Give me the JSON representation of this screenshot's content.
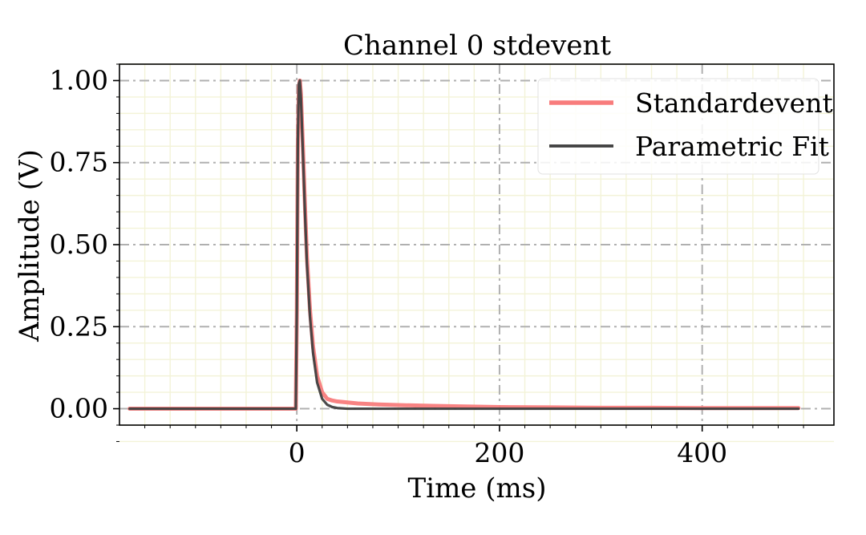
{
  "chart_data": {
    "type": "line",
    "title": "Channel 0 stdevent",
    "xlabel": "Time (ms)",
    "ylabel": "Amplitude (V)",
    "xlim": [
      -175,
      530
    ],
    "ylim": [
      -0.05,
      1.05
    ],
    "x_ticks": [
      0,
      200,
      400
    ],
    "x_tick_labels": [
      "0",
      "200",
      "400"
    ],
    "y_ticks": [
      0,
      0.25,
      0.5,
      0.75,
      1.0
    ],
    "y_tick_labels": [
      "0.00",
      "0.25",
      "0.50",
      "0.75",
      "1.00"
    ],
    "grid": {
      "major": true,
      "major_style": "dash-dot",
      "major_color": "#b0b0b0",
      "minor": true,
      "minor_color": "#f3f3d8"
    },
    "legend_position": "top-right",
    "series": [
      {
        "name": "Standardevent",
        "color": "#f87c7c",
        "x": [
          -165,
          -10,
          -1,
          0,
          1,
          2,
          3,
          4,
          6,
          8,
          10,
          13,
          16,
          20,
          25,
          30,
          35,
          40,
          50,
          60,
          80,
          100,
          130,
          160,
          200,
          250,
          300,
          350,
          400,
          450,
          495
        ],
        "y": [
          0.0,
          0.0,
          0.0,
          0.3,
          0.8,
          0.98,
          1.0,
          0.96,
          0.8,
          0.62,
          0.46,
          0.3,
          0.19,
          0.1,
          0.05,
          0.03,
          0.025,
          0.022,
          0.019,
          0.016,
          0.013,
          0.011,
          0.009,
          0.007,
          0.005,
          0.004,
          0.003,
          0.003,
          0.002,
          0.002,
          0.002
        ]
      },
      {
        "name": "Parametric Fit",
        "color": "#404040",
        "x": [
          -165,
          -10,
          -1,
          0,
          1,
          2,
          3,
          4,
          6,
          8,
          10,
          13,
          16,
          20,
          25,
          30,
          35,
          40,
          50,
          60,
          80,
          100,
          200,
          300,
          400,
          495
        ],
        "y": [
          0.0,
          0.0,
          0.0,
          0.3,
          0.82,
          0.99,
          1.0,
          0.95,
          0.78,
          0.6,
          0.44,
          0.28,
          0.17,
          0.08,
          0.03,
          0.012,
          0.005,
          0.002,
          0.0,
          0.0,
          0.0,
          0.0,
          0.0,
          0.0,
          0.0,
          0.0
        ]
      }
    ]
  }
}
